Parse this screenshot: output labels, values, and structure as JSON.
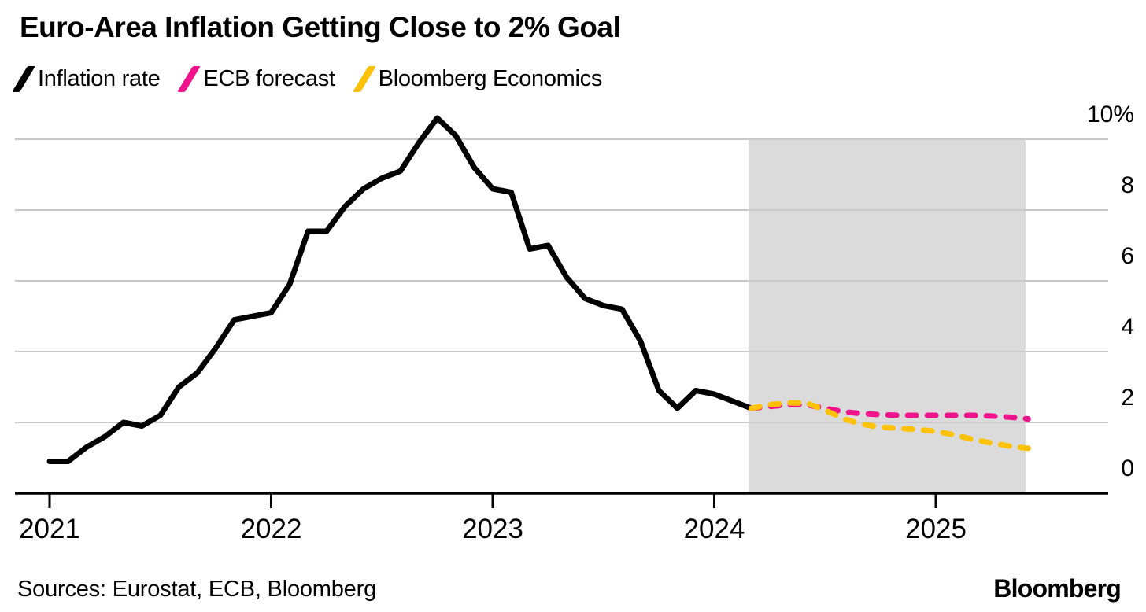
{
  "header": {
    "title": "Euro-Area Inflation Getting Close to 2% Goal"
  },
  "legend": [
    {
      "label": "Inflation rate",
      "color": "#000000"
    },
    {
      "label": "ECB forecast",
      "color": "#f0148c"
    },
    {
      "label": "Bloomberg Economics",
      "color": "#ffc20a"
    }
  ],
  "footer": {
    "sources": "Sources: Eurostat, ECB, Bloomberg",
    "brand": "Bloomberg"
  },
  "chart_data": {
    "type": "line",
    "title": "Euro-Area Inflation Getting Close to 2% Goal",
    "unit": "%",
    "ylim": [
      0,
      10
    ],
    "grid": true,
    "legend_position": "top-left",
    "y_ticks": [
      {
        "value": 0,
        "label": "0"
      },
      {
        "value": 2,
        "label": "2"
      },
      {
        "value": 4,
        "label": "4"
      },
      {
        "value": 6,
        "label": "6"
      },
      {
        "value": 8,
        "label": "8"
      },
      {
        "value": 10,
        "label": "10%"
      }
    ],
    "x_ticks": [
      {
        "value": 2021,
        "label": "2021"
      },
      {
        "value": 2022,
        "label": "2022"
      },
      {
        "value": 2023,
        "label": "2023"
      },
      {
        "value": 2024,
        "label": "2024"
      },
      {
        "value": 2025,
        "label": "2025"
      }
    ],
    "forecast_band": {
      "start_year": 2024.155,
      "end_year": 2025.405,
      "color": "#dbdbdb"
    },
    "series": [
      {
        "name": "Inflation rate",
        "color": "#000000",
        "dash": false,
        "start_year": 2021,
        "start_month": 1,
        "monthly_values": [
          0.9,
          0.9,
          1.3,
          1.6,
          2.0,
          1.9,
          2.2,
          3.0,
          3.4,
          4.1,
          4.9,
          5.0,
          5.1,
          5.9,
          7.4,
          7.4,
          8.1,
          8.6,
          8.9,
          9.1,
          9.9,
          10.6,
          10.1,
          9.2,
          8.6,
          8.5,
          6.9,
          7.0,
          6.1,
          5.5,
          5.3,
          5.2,
          4.3,
          2.9,
          2.4,
          2.9,
          2.8,
          2.6,
          2.4
        ]
      },
      {
        "name": "ECB forecast",
        "color": "#f0148c",
        "dash": true,
        "start_year": 2024,
        "start_month": 3,
        "monthly_values": [
          2.4,
          2.45,
          2.5,
          2.5,
          2.4,
          2.3,
          2.25,
          2.22,
          2.2,
          2.2,
          2.2,
          2.2,
          2.2,
          2.18,
          2.15,
          2.1
        ]
      },
      {
        "name": "Bloomberg Economics",
        "color": "#ffc20a",
        "dash": true,
        "start_year": 2024,
        "start_month": 3,
        "monthly_values": [
          2.4,
          2.5,
          2.55,
          2.55,
          2.35,
          2.1,
          1.95,
          1.87,
          1.83,
          1.8,
          1.75,
          1.65,
          1.52,
          1.42,
          1.33,
          1.27
        ]
      }
    ]
  }
}
